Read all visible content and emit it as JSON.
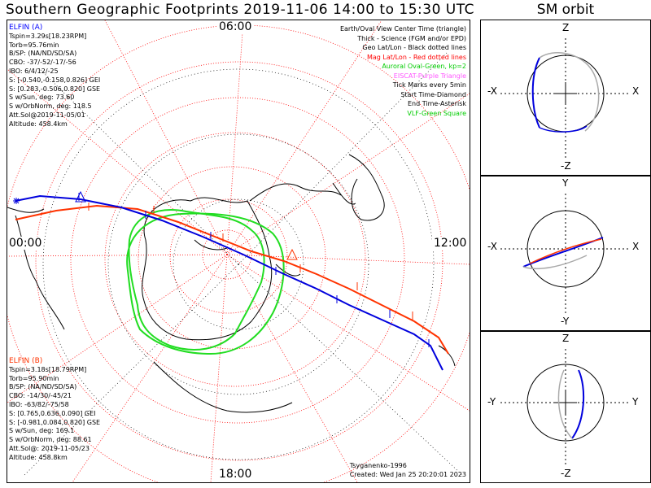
{
  "title": "Southern Geographic Footprints 2019-11-06 14:00 to 15:30 UTC",
  "sm_title": "SM orbit",
  "hour_labels": {
    "top": "06:00",
    "left": "00:00",
    "right": "12:00",
    "bottom": "18:00"
  },
  "legend": [
    {
      "text": "Earth/Oval View Center Time (triangle)",
      "color": "#000000"
    },
    {
      "text": "Thick - Science (FGM and/or EPD)",
      "color": "#000000"
    },
    {
      "text": "Geo Lat/Lon - Black dotted lines",
      "color": "#000000"
    },
    {
      "text": "Mag Lat/Lon - Red dotted lines",
      "color": "#ff0000"
    },
    {
      "text": "Auroral Oval-Green, kp=2",
      "color": "#00cc00"
    },
    {
      "text": "EISCAT-Purple Triangle",
      "color": "#ff55ff"
    },
    {
      "text": "Tick Marks every 5min",
      "color": "#000000"
    },
    {
      "text": "Start Time-Diamond",
      "color": "#000000"
    },
    {
      "text": "End Time-Asterisk",
      "color": "#000000"
    },
    {
      "text": "VLF-Green Square",
      "color": "#00cc00"
    }
  ],
  "elfin_a": {
    "header": "ELFIN (A)",
    "color": "#0000ff",
    "lines": [
      "Tspin=3.29s[18.23RPM]",
      "Torb=95.76min",
      "B/SP: (NA/ND/SD/SA)",
      "CBO: -37/-52/-17/-56",
      "IBO: 6/4/12/-25",
      "S: [-0.540,-0.158,0.826] GEI",
      "S: [0.283,-0.506,0.820] GSE",
      "S w/Sun, deg: 73.60",
      "S w/OrbNorm, deg: 118.5",
      "Att.Sol@2019-11-05/01",
      "Altitude: 458.4km"
    ]
  },
  "elfin_b": {
    "header": "ELFIN (B)",
    "color": "#ff3300",
    "lines": [
      "Tspin=3.18s[18.79RPM]",
      "Torb=95.90min",
      "B/SP: (NA/ND/SD/SA)",
      "CBO: -14/30/-45/21",
      "IBO: -63/82/-75/58",
      "S: [0.765,0.636,0.090] GEI",
      "S: [-0.981,0.084,0.820] GSE",
      "S w/Sun, deg: 169.1",
      "S w/OrbNorm, deg: 88.61",
      "Att.Sol@: 2019-11-05/23",
      "Altitude: 458.8km"
    ]
  },
  "credit": [
    "Tsyganenko-1996",
    "Created: Wed Jan 25 20:20:01 2023"
  ],
  "sm_panels": [
    {
      "top": "Z",
      "bottom": "-Z",
      "left": "-X",
      "right": "X"
    },
    {
      "top": "Y",
      "bottom": "-Y",
      "left": "-X",
      "right": "X"
    },
    {
      "top": "Z",
      "bottom": "-Z",
      "left": "-Y",
      "right": "Y"
    }
  ],
  "colors": {
    "elfin_a": "#0000ff",
    "elfin_b": "#ff3300",
    "mag_grid": "#ff0000",
    "oval": "#00cc00",
    "geo_grid": "#000000"
  }
}
